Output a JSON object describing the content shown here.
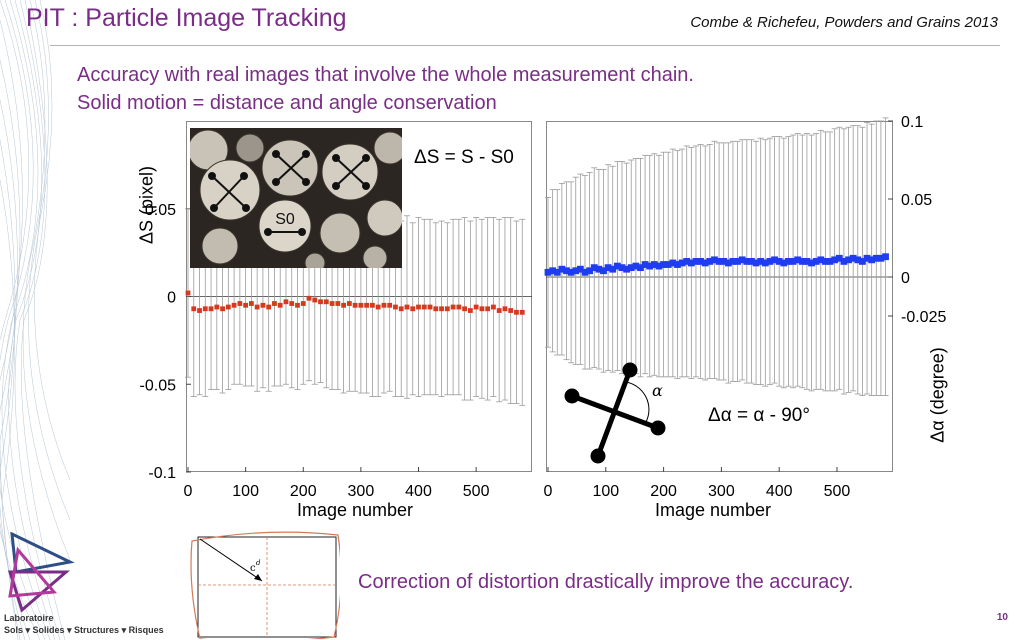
{
  "header": {
    "title": "PIT : Particle Image Tracking",
    "citation": "Combe & Richefeu, Powders and Grains 2013"
  },
  "intro": {
    "line1": "Accuracy with real images that involve the whole measurement chain.",
    "line2": "Solid motion = distance and angle conservation"
  },
  "colors": {
    "title": "#7a2d86",
    "left_series": "#d53a1e",
    "right_series": "#1f3cf0",
    "error_bar": "#9a9a9a"
  },
  "chart_data": [
    {
      "type": "scatter",
      "title": "",
      "xlabel": "Image number",
      "ylabel": "ΔS (pixel)",
      "xlim": [
        0,
        590
      ],
      "ylim": [
        -0.1,
        0.1
      ],
      "xticks": [
        "0",
        "100",
        "200",
        "300",
        "400",
        "500"
      ],
      "yticks": [
        "0.05",
        "0",
        "-0.05",
        "-0.1"
      ],
      "error_bars": true,
      "zero_line": true,
      "annotation": "ΔS = S - S0",
      "inset_label": "S0",
      "series": [
        {
          "x": [
            0,
            10,
            20,
            30,
            40,
            50,
            60,
            70,
            80,
            90,
            100,
            110,
            120,
            130,
            140,
            150,
            160,
            170,
            180,
            190,
            200,
            210,
            220,
            230,
            240,
            250,
            260,
            270,
            280,
            290,
            300,
            310,
            320,
            330,
            340,
            350,
            360,
            370,
            380,
            390,
            400,
            410,
            420,
            430,
            440,
            450,
            460,
            470,
            480,
            490,
            500,
            510,
            520,
            530,
            540,
            550,
            560,
            570,
            580
          ],
          "values": [
            0.002,
            -0.007,
            -0.008,
            -0.007,
            -0.007,
            -0.006,
            -0.007,
            -0.006,
            -0.005,
            -0.004,
            -0.005,
            -0.004,
            -0.006,
            -0.005,
            -0.006,
            -0.004,
            -0.005,
            -0.003,
            -0.004,
            -0.005,
            -0.004,
            -0.001,
            -0.002,
            -0.003,
            -0.003,
            -0.004,
            -0.004,
            -0.005,
            -0.004,
            -0.005,
            -0.005,
            -0.005,
            -0.005,
            -0.006,
            -0.005,
            -0.005,
            -0.006,
            -0.007,
            -0.006,
            -0.007,
            -0.006,
            -0.006,
            -0.006,
            -0.007,
            -0.007,
            -0.007,
            -0.006,
            -0.006,
            -0.007,
            -0.008,
            -0.006,
            -0.007,
            -0.007,
            -0.006,
            -0.008,
            -0.007,
            -0.008,
            -0.009,
            -0.009
          ],
          "error": [
            0.048,
            0.05,
            0.048,
            0.05,
            0.046,
            0.047,
            0.048,
            0.047,
            0.045,
            0.046,
            0.046,
            0.047,
            0.048,
            0.047,
            0.048,
            0.047,
            0.046,
            0.047,
            0.048,
            0.048,
            0.046,
            0.047,
            0.048,
            0.046,
            0.049,
            0.049,
            0.049,
            0.05,
            0.05,
            0.049,
            0.05,
            0.05,
            0.052,
            0.051,
            0.05,
            0.049,
            0.051,
            0.05,
            0.052,
            0.049,
            0.051,
            0.05,
            0.05,
            0.049,
            0.05,
            0.049,
            0.05,
            0.05,
            0.052,
            0.051,
            0.051,
            0.051,
            0.052,
            0.051,
            0.052,
            0.052,
            0.053,
            0.052,
            0.053
          ]
        }
      ]
    },
    {
      "type": "scatter",
      "title": "",
      "xlabel": "Image number",
      "ylabel": "Δα (degree)",
      "xlim": [
        0,
        590
      ],
      "ylim": [
        -0.125,
        0.1
      ],
      "xticks": [
        "0",
        "100",
        "200",
        "300",
        "400",
        "500"
      ],
      "yticks": [
        "0.1",
        "0.05",
        "0",
        "-0.025"
      ],
      "error_bars": true,
      "zero_line": true,
      "annotation": "Δα = α - 90°",
      "inset_label": "α",
      "series": [
        {
          "x": [
            0,
            8,
            16,
            24,
            32,
            40,
            48,
            56,
            64,
            72,
            80,
            88,
            96,
            104,
            112,
            120,
            128,
            136,
            144,
            152,
            160,
            168,
            176,
            184,
            192,
            200,
            208,
            216,
            224,
            232,
            240,
            248,
            256,
            264,
            272,
            280,
            288,
            296,
            304,
            312,
            320,
            328,
            336,
            344,
            352,
            360,
            368,
            376,
            384,
            392,
            400,
            408,
            416,
            424,
            432,
            440,
            448,
            456,
            464,
            472,
            480,
            488,
            496,
            504,
            512,
            520,
            528,
            536,
            544,
            552,
            560,
            568,
            576,
            584
          ],
          "values": [
            0.003,
            0.004,
            0.003,
            0.005,
            0.004,
            0.003,
            0.004,
            0.005,
            0.003,
            0.004,
            0.006,
            0.005,
            0.004,
            0.006,
            0.005,
            0.007,
            0.006,
            0.005,
            0.006,
            0.007,
            0.006,
            0.008,
            0.007,
            0.008,
            0.007,
            0.008,
            0.008,
            0.009,
            0.008,
            0.009,
            0.01,
            0.009,
            0.01,
            0.01,
            0.009,
            0.01,
            0.011,
            0.01,
            0.01,
            0.009,
            0.01,
            0.01,
            0.011,
            0.01,
            0.01,
            0.009,
            0.01,
            0.009,
            0.01,
            0.011,
            0.01,
            0.009,
            0.01,
            0.01,
            0.011,
            0.01,
            0.01,
            0.009,
            0.01,
            0.011,
            0.01,
            0.01,
            0.011,
            0.012,
            0.01,
            0.011,
            0.012,
            0.011,
            0.01,
            0.012,
            0.011,
            0.012,
            0.012,
            0.013
          ],
          "error": [
            0.048,
            0.052,
            0.053,
            0.055,
            0.057,
            0.058,
            0.06,
            0.061,
            0.062,
            0.063,
            0.064,
            0.064,
            0.065,
            0.066,
            0.066,
            0.067,
            0.068,
            0.068,
            0.069,
            0.069,
            0.07,
            0.07,
            0.071,
            0.071,
            0.071,
            0.072,
            0.072,
            0.073,
            0.073,
            0.073,
            0.074,
            0.074,
            0.074,
            0.075,
            0.075,
            0.075,
            0.076,
            0.076,
            0.076,
            0.077,
            0.077,
            0.077,
            0.077,
            0.078,
            0.078,
            0.078,
            0.079,
            0.079,
            0.079,
            0.079,
            0.08,
            0.08,
            0.08,
            0.081,
            0.081,
            0.081,
            0.082,
            0.082,
            0.082,
            0.083,
            0.083,
            0.083,
            0.084,
            0.084,
            0.085,
            0.085,
            0.085,
            0.086,
            0.086,
            0.087,
            0.087,
            0.088,
            0.088,
            0.089
          ]
        }
      ]
    }
  ],
  "distortion_inset": {
    "label": "c",
    "label_sup": "d"
  },
  "conclusion": "Correction of distortion drastically improve the accuracy.",
  "footer": {
    "lab_name": "Laboratoire",
    "lab_sub": "Sols ▾ Solides ▾ Structures ▾ Risques",
    "page": "10"
  }
}
